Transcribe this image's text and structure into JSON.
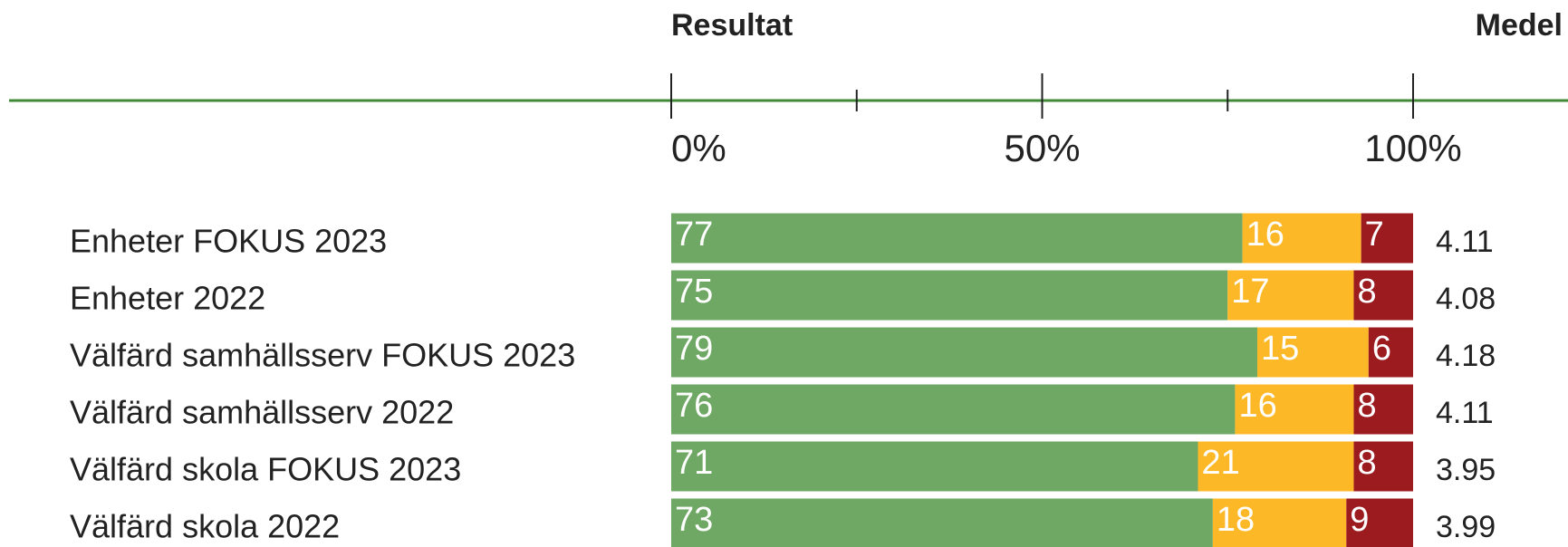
{
  "chart_data": {
    "type": "stacked_barh",
    "title": "Resultat",
    "categories": [
      "Enheter FOKUS 2023",
      "Enheter 2022",
      "Välfärd samhällsserv FOKUS 2023",
      "Välfärd samhällsserv 2022",
      "Välfärd skola FOKUS 2023",
      "Välfärd skola 2022"
    ],
    "series": [
      {
        "color": "#6fa864",
        "values": [
          77,
          75,
          79,
          76,
          71,
          73
        ]
      },
      {
        "color": "#fdb827",
        "values": [
          16,
          17,
          15,
          16,
          21,
          18
        ]
      },
      {
        "color": "#9b1b1f",
        "values": [
          7,
          8,
          6,
          8,
          8,
          9
        ]
      }
    ],
    "xlim": [
      0,
      100
    ],
    "xticks": [
      {
        "value": 0,
        "label": "0%"
      },
      {
        "value": 50,
        "label": "50%"
      },
      {
        "value": 100,
        "label": "100%"
      }
    ],
    "xminor_ticks": [
      25,
      75
    ],
    "axis_color": "#3f8a35",
    "means_title": "Medel",
    "means": [
      4.11,
      4.08,
      4.18,
      4.11,
      3.95,
      3.99
    ]
  }
}
